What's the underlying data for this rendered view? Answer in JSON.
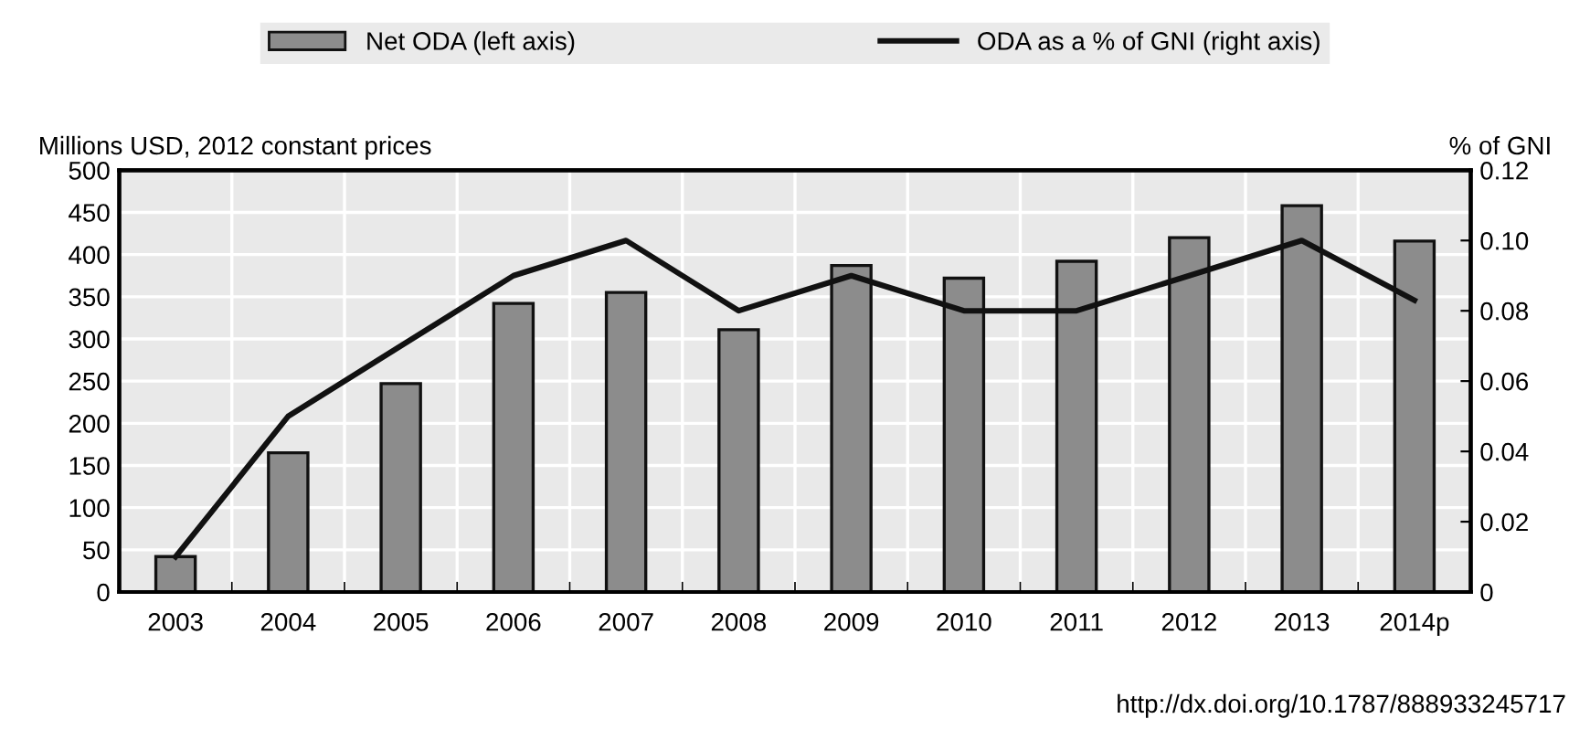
{
  "chart_data": {
    "type": "bar",
    "categories": [
      "2003",
      "2004",
      "2005",
      "2006",
      "2007",
      "2008",
      "2009",
      "2010",
      "2011",
      "2012",
      "2013",
      "2014p"
    ],
    "series": [
      {
        "name": "Net ODA (left axis)",
        "color": "#8c8c8c",
        "values": [
          42,
          165,
          247,
          342,
          355,
          311,
          387,
          372,
          392,
          420,
          458,
          416
        ]
      },
      {
        "name": "ODA as a % of GNI (right axis)",
        "type": "line",
        "axis": "y2",
        "color": "#111111",
        "values": [
          0.01,
          0.05,
          0.07,
          0.09,
          0.1,
          0.08,
          0.09,
          0.08,
          0.08,
          0.09,
          0.1,
          0.083
        ]
      }
    ],
    "ylabel": "Millions USD, 2012 constant prices",
    "y2label": "% of GNI",
    "ylim": [
      0,
      500
    ],
    "yticks": [
      0,
      50,
      100,
      150,
      200,
      250,
      300,
      350,
      400,
      450,
      500
    ],
    "y2lim": [
      0,
      0.12
    ],
    "y2ticks": [
      {
        "value": 0,
        "label": "0"
      },
      {
        "value": 0.02,
        "label": "0.02"
      },
      {
        "value": 0.04,
        "label": "0.04"
      },
      {
        "value": 0.06,
        "label": "0.06"
      },
      {
        "value": 0.08,
        "label": "0.08"
      },
      {
        "value": 0.1,
        "label": "0.10"
      },
      {
        "value": 0.12,
        "label": "0.12"
      }
    ],
    "grid": true,
    "legend": "top",
    "marker": "none",
    "line_style": "solid",
    "annotations": [
      "http://dx.doi.org/10.1787/888933245717"
    ]
  }
}
